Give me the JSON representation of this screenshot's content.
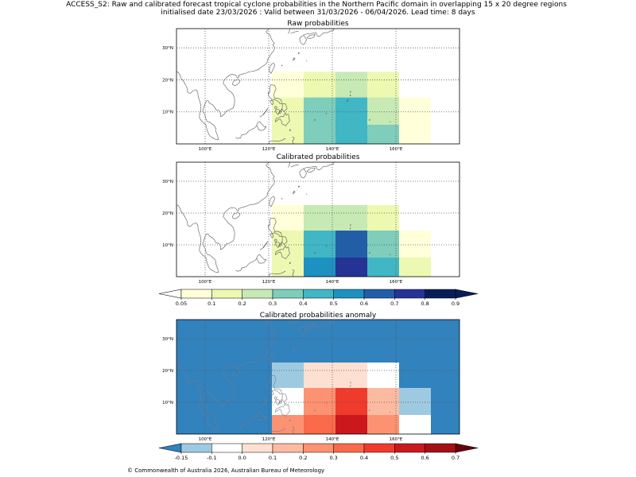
{
  "figure": {
    "title_line1": "ACCESS_S2: Raw and calibrated forecast tropical cyclone probabilities in the Northern Pacific domain in overlapping 15 x 20 degree regions",
    "title_line2": "initialised date 23/03/2026 :  Valid between 31/03/2026 - 06/04/2026. Lead time: 8 days",
    "footer": "© Commonwealth of Australia 2026, Australian Bureau of Meteorology"
  },
  "colors": {
    "prob_scale": [
      "#ffffd9",
      "#edf8b1",
      "#c7e9b4",
      "#7fcdbb",
      "#41b6c4",
      "#1d91c0",
      "#225ea8",
      "#253494",
      "#081d58"
    ],
    "prob_under": "#ffffff",
    "prob_over": "#081d58",
    "anom_scale": [
      "#9ecae1",
      "#ffffff",
      "#fee0d2",
      "#fcbba1",
      "#fc9272",
      "#fb6a4a",
      "#ef3b2c",
      "#cb181d",
      "#a50f15"
    ],
    "anom_under": "#3182bd",
    "anom_over": "#67000d",
    "coast": "#555555",
    "coast_on_anomaly": "#7a7a8a",
    "grid": "#555555"
  },
  "chart_data": [
    {
      "type": "heatmap",
      "title": "Raw probabilities",
      "xlim": [
        91,
        180
      ],
      "ylim": [
        0,
        36
      ],
      "xticks": [
        100,
        120,
        140,
        160
      ],
      "xtick_labels": [
        "100°E",
        "120°E",
        "140°E",
        "160°E"
      ],
      "yticks": [
        10,
        20,
        30
      ],
      "ytick_labels": [
        "10°N",
        "20°N",
        "30°N"
      ],
      "grid": true,
      "regions": [
        {
          "lon": [
            121,
            131
          ],
          "lat": [
            22.5,
            14.5
          ],
          "value": 0.07
        },
        {
          "lon": [
            131,
            141
          ],
          "lat": [
            22.5,
            14.5
          ],
          "value": 0.12
        },
        {
          "lon": [
            141,
            151
          ],
          "lat": [
            22.5,
            14.5
          ],
          "value": 0.25
        },
        {
          "lon": [
            151,
            161
          ],
          "lat": [
            22.5,
            14.5
          ],
          "value": 0.13
        },
        {
          "lon": [
            121,
            131
          ],
          "lat": [
            14.5,
            0
          ],
          "value": 0.13
        },
        {
          "lon": [
            131,
            141
          ],
          "lat": [
            14.5,
            0
          ],
          "value": 0.33
        },
        {
          "lon": [
            141,
            151
          ],
          "lat": [
            14.5,
            0
          ],
          "value": 0.42
        },
        {
          "lon": [
            151,
            161
          ],
          "lat": [
            14.5,
            6
          ],
          "value": 0.25
        },
        {
          "lon": [
            151,
            161
          ],
          "lat": [
            6,
            0
          ],
          "value": 0.33
        },
        {
          "lon": [
            161,
            171
          ],
          "lat": [
            14.5,
            0
          ],
          "value": 0.07
        }
      ]
    },
    {
      "type": "heatmap",
      "title": "Calibrated probabilities",
      "xlim": [
        91,
        180
      ],
      "ylim": [
        0,
        36
      ],
      "xticks": [
        100,
        120,
        140,
        160
      ],
      "xtick_labels": [
        "100°E",
        "120°E",
        "140°E",
        "160°E"
      ],
      "yticks": [
        10,
        20,
        30
      ],
      "ytick_labels": [
        "10°N",
        "20°N",
        "30°N"
      ],
      "grid": true,
      "regions": [
        {
          "lon": [
            121,
            131
          ],
          "lat": [
            22.5,
            14.5
          ],
          "value": 0.07
        },
        {
          "lon": [
            131,
            151
          ],
          "lat": [
            22.5,
            14.5
          ],
          "value": 0.25
        },
        {
          "lon": [
            151,
            161
          ],
          "lat": [
            22.5,
            14.5
          ],
          "value": 0.13
        },
        {
          "lon": [
            121,
            131
          ],
          "lat": [
            14.5,
            0
          ],
          "value": 0.13
        },
        {
          "lon": [
            131,
            141
          ],
          "lat": [
            14.5,
            6
          ],
          "value": 0.42
        },
        {
          "lon": [
            131,
            141
          ],
          "lat": [
            6,
            0
          ],
          "value": 0.55
        },
        {
          "lon": [
            141,
            151
          ],
          "lat": [
            14.5,
            6
          ],
          "value": 0.65
        },
        {
          "lon": [
            141,
            151
          ],
          "lat": [
            6,
            0
          ],
          "value": 0.75
        },
        {
          "lon": [
            151,
            161
          ],
          "lat": [
            14.5,
            6
          ],
          "value": 0.33
        },
        {
          "lon": [
            151,
            161
          ],
          "lat": [
            6,
            0
          ],
          "value": 0.42
        },
        {
          "lon": [
            161,
            171
          ],
          "lat": [
            14.5,
            6
          ],
          "value": 0.07
        },
        {
          "lon": [
            161,
            171
          ],
          "lat": [
            6,
            0
          ],
          "value": 0.13
        }
      ]
    },
    {
      "type": "colorbar",
      "name": "probability",
      "bounds": [
        0.05,
        0.1,
        0.2,
        0.3,
        0.4,
        0.5,
        0.6,
        0.7,
        0.8,
        0.9
      ],
      "tick_labels": [
        "0.05",
        "0.1",
        "0.2",
        "0.3",
        "0.4",
        "0.5",
        "0.6",
        "0.7",
        "0.8",
        "0.9"
      ],
      "extend": "both"
    },
    {
      "type": "heatmap",
      "title": "Calibrated probabilities anomaly",
      "xlim": [
        91,
        180
      ],
      "ylim": [
        0,
        36
      ],
      "xticks": [
        100,
        120,
        140,
        160
      ],
      "xtick_labels": [
        "100°E",
        "120°E",
        "140°E",
        "160°E"
      ],
      "yticks": [
        10,
        20,
        30
      ],
      "ytick_labels": [
        "10°N",
        "20°N",
        "30°N"
      ],
      "grid": true,
      "background_value": -0.2,
      "regions": [
        {
          "lon": [
            121,
            131
          ],
          "lat": [
            22.5,
            14.5
          ],
          "value": -0.12
        },
        {
          "lon": [
            131,
            151
          ],
          "lat": [
            22.5,
            14.5
          ],
          "value": 0.05
        },
        {
          "lon": [
            151,
            161
          ],
          "lat": [
            22.5,
            14.5
          ],
          "value": -0.05
        },
        {
          "lon": [
            121,
            131
          ],
          "lat": [
            14.5,
            6
          ],
          "value": -0.05
        },
        {
          "lon": [
            121,
            131
          ],
          "lat": [
            6,
            0
          ],
          "value": 0.25
        },
        {
          "lon": [
            131,
            141
          ],
          "lat": [
            14.5,
            6
          ],
          "value": 0.25
        },
        {
          "lon": [
            131,
            141
          ],
          "lat": [
            6,
            0
          ],
          "value": 0.35
        },
        {
          "lon": [
            141,
            151
          ],
          "lat": [
            14.5,
            6
          ],
          "value": 0.45
        },
        {
          "lon": [
            141,
            151
          ],
          "lat": [
            6,
            0
          ],
          "value": 0.55
        },
        {
          "lon": [
            151,
            161
          ],
          "lat": [
            14.5,
            6
          ],
          "value": 0.15
        },
        {
          "lon": [
            151,
            161
          ],
          "lat": [
            6,
            0
          ],
          "value": 0.25
        },
        {
          "lon": [
            161,
            171
          ],
          "lat": [
            14.5,
            6
          ],
          "value": -0.12
        },
        {
          "lon": [
            161,
            171
          ],
          "lat": [
            6,
            0
          ],
          "value": -0.05
        }
      ]
    },
    {
      "type": "colorbar",
      "name": "anomaly",
      "bounds": [
        -0.15,
        -0.1,
        0.0,
        0.1,
        0.2,
        0.3,
        0.4,
        0.5,
        0.6,
        0.7
      ],
      "tick_labels": [
        "-0.15",
        "-0.1",
        "0.0",
        "0.1",
        "0.2",
        "0.3",
        "0.4",
        "0.5",
        "0.6",
        "0.7"
      ],
      "extend": "both"
    }
  ]
}
